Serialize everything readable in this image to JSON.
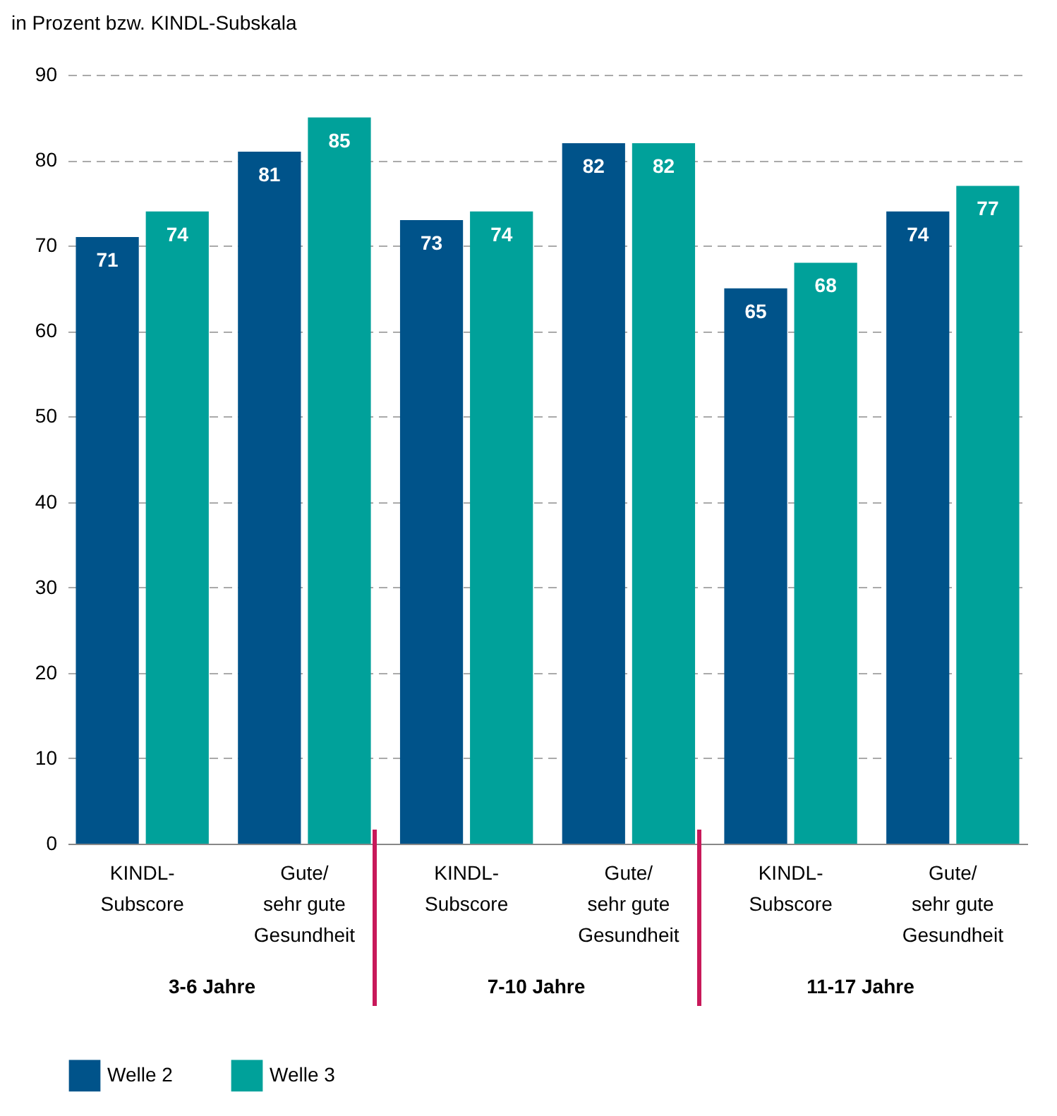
{
  "chart_data": {
    "type": "bar",
    "title": "in Prozent bzw. KINDL-Subskala",
    "categories": [
      "KINDL-\nSubscore",
      "Gute/\nsehr gute\nGesundheit",
      "KINDL-\nSubscore",
      "Gute/\nsehr gute\nGesundheit",
      "KINDL-\nSubscore",
      "Gute/\nsehr gute\nGesundheit"
    ],
    "series": [
      {
        "name": "Welle 2",
        "color": "#00538a",
        "values": [
          71,
          81,
          73,
          82,
          65,
          74
        ]
      },
      {
        "name": "Welle 3",
        "color": "#00a19a",
        "values": [
          74,
          85,
          74,
          82,
          68,
          77
        ]
      }
    ],
    "ylim": [
      0,
      90
    ],
    "yticks": [
      0,
      10,
      20,
      30,
      40,
      50,
      60,
      70,
      80,
      90
    ],
    "grid": "y",
    "legend": "bottom",
    "data_labels": true,
    "annotations": [
      "3-6 Jahre",
      "7-10 Jahre",
      "11-17 Jahre"
    ]
  }
}
